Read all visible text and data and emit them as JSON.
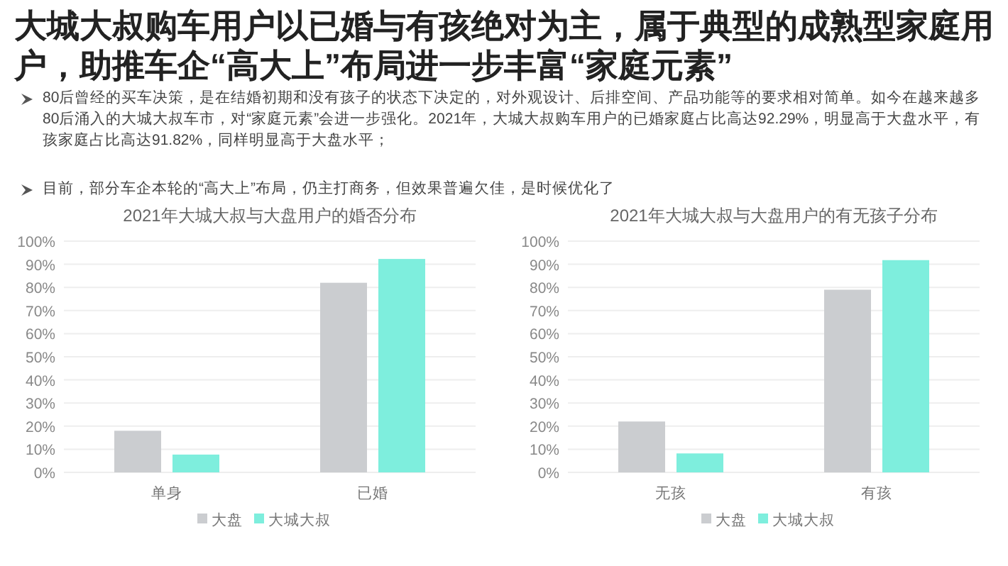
{
  "chart_data": [
    {
      "type": "bar",
      "title": "2021年大城大叔与大盘用户的婚否分布",
      "categories": [
        "单身",
        "已婚"
      ],
      "series": [
        {
          "name": "大盘",
          "color": "#cbcdd0",
          "values": [
            18,
            82
          ]
        },
        {
          "name": "大城大叔",
          "color": "#7eeedd",
          "values": [
            7.7,
            92.3
          ]
        }
      ],
      "ylim": [
        0,
        100
      ],
      "yticks": [
        {
          "value": 0,
          "label": "0%"
        },
        {
          "value": 10,
          "label": "10%"
        },
        {
          "value": 20,
          "label": "20%"
        },
        {
          "value": 30,
          "label": "30%"
        },
        {
          "value": 40,
          "label": "40%"
        },
        {
          "value": 50,
          "label": "50%"
        },
        {
          "value": 60,
          "label": "60%"
        },
        {
          "value": 70,
          "label": "70%"
        },
        {
          "value": 80,
          "label": "80%"
        },
        {
          "value": 90,
          "label": "90%"
        },
        {
          "value": 100,
          "label": "100%"
        }
      ],
      "grid": "y",
      "legend": "bottom",
      "annotations": [
        "大城大叔购车用户以已婚与有孩绝对为主，属于典型的成熟型家庭用户，助推车企“高大上”布局进一步丰富“家庭元素”",
        "80后曾经的买车决策，是在结婚初期和没有孩子的状态下决定的，对外观设计、后排空间、产品功能等的要求相对简单。如今在越来越多80后涌入的大城大叔车市，对“家庭元素”会进一步强化。2021年，大城大叔购车用户的已婚家庭占比高达92.29%，明显高于大盘水平，有孩家庭占比高达91.82%，同样明显高于大盘水平；",
        "目前，部分车企本轮的“高大上”布局，仍主打商务，但效果普遍欠佳，是时候优化了"
      ]
    },
    {
      "type": "bar",
      "title": "2021年大城大叔与大盘用户的有无孩子分布",
      "categories": [
        "无孩",
        "有孩"
      ],
      "series": [
        {
          "name": "大盘",
          "color": "#cbcdd0",
          "values": [
            22,
            79
          ]
        },
        {
          "name": "大城大叔",
          "color": "#7eeedd",
          "values": [
            8.2,
            91.8
          ]
        }
      ],
      "ylim": [
        0,
        100
      ],
      "yticks": [
        {
          "value": 0,
          "label": "0%"
        },
        {
          "value": 10,
          "label": "10%"
        },
        {
          "value": 20,
          "label": "20%"
        },
        {
          "value": 30,
          "label": "30%"
        },
        {
          "value": 40,
          "label": "40%"
        },
        {
          "value": 50,
          "label": "50%"
        },
        {
          "value": 60,
          "label": "60%"
        },
        {
          "value": 70,
          "label": "70%"
        },
        {
          "value": 80,
          "label": "80%"
        },
        {
          "value": 90,
          "label": "90%"
        },
        {
          "value": 100,
          "label": "100%"
        }
      ],
      "grid": "y",
      "legend": "bottom"
    }
  ]
}
